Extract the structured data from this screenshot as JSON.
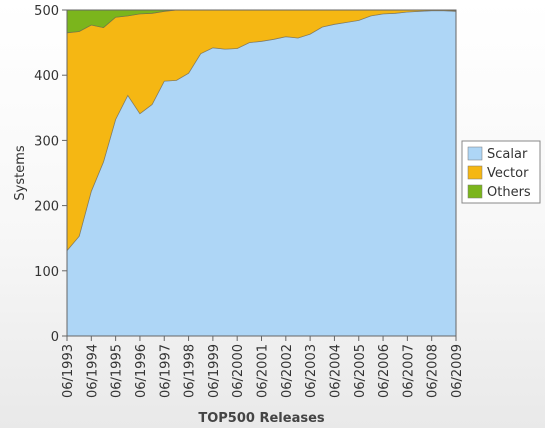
{
  "chart_data": {
    "type": "area",
    "stacked": true,
    "xlabel": "TOP500 Releases",
    "ylabel": "Systems",
    "ylim": [
      0,
      500
    ],
    "yticks": [
      0,
      100,
      200,
      300,
      400,
      500
    ],
    "x": [
      "06/1993",
      "11/1993",
      "06/1994",
      "11/1994",
      "06/1995",
      "11/1995",
      "06/1996",
      "11/1996",
      "06/1997",
      "11/1997",
      "06/1998",
      "11/1998",
      "06/1999",
      "11/1999",
      "06/2000",
      "11/2000",
      "06/2001",
      "11/2001",
      "06/2002",
      "11/2002",
      "06/2003",
      "11/2003",
      "06/2004",
      "11/2004",
      "06/2005",
      "11/2005",
      "06/2006",
      "11/2006",
      "06/2007",
      "11/2007",
      "06/2008",
      "11/2008",
      "06/2009"
    ],
    "xtick_labels": [
      "06/1993",
      "06/1994",
      "06/1995",
      "06/1996",
      "06/1997",
      "06/1998",
      "06/1999",
      "06/2000",
      "06/2001",
      "06/2002",
      "06/2003",
      "06/2004",
      "06/2005",
      "06/2006",
      "06/2007",
      "06/2008",
      "06/2009"
    ],
    "series": [
      {
        "name": "Scalar",
        "color": "#aed6f6",
        "values": [
          131,
          153,
          222,
          267,
          332,
          369,
          341,
          355,
          391,
          392,
          403,
          433,
          442,
          440,
          441,
          450,
          452,
          455,
          459,
          457,
          463,
          474,
          478,
          481,
          484,
          491,
          494,
          495,
          497,
          498,
          499,
          499,
          498
        ]
      },
      {
        "name": "Vector",
        "color": "#f5b713",
        "values": [
          334,
          314,
          255,
          206,
          157,
          122,
          153,
          140,
          107,
          108,
          97,
          67,
          58,
          60,
          59,
          50,
          48,
          45,
          41,
          43,
          37,
          26,
          22,
          19,
          16,
          9,
          6,
          5,
          3,
          2,
          1,
          1,
          1
        ]
      },
      {
        "name": "Others",
        "color": "#7bb51c",
        "values": [
          35,
          33,
          23,
          27,
          11,
          9,
          6,
          5,
          2,
          0,
          0,
          0,
          0,
          0,
          0,
          0,
          0,
          0,
          0,
          0,
          0,
          0,
          0,
          0,
          0,
          0,
          0,
          0,
          0,
          0,
          0,
          0,
          0
        ]
      }
    ],
    "legend_position": "right"
  }
}
